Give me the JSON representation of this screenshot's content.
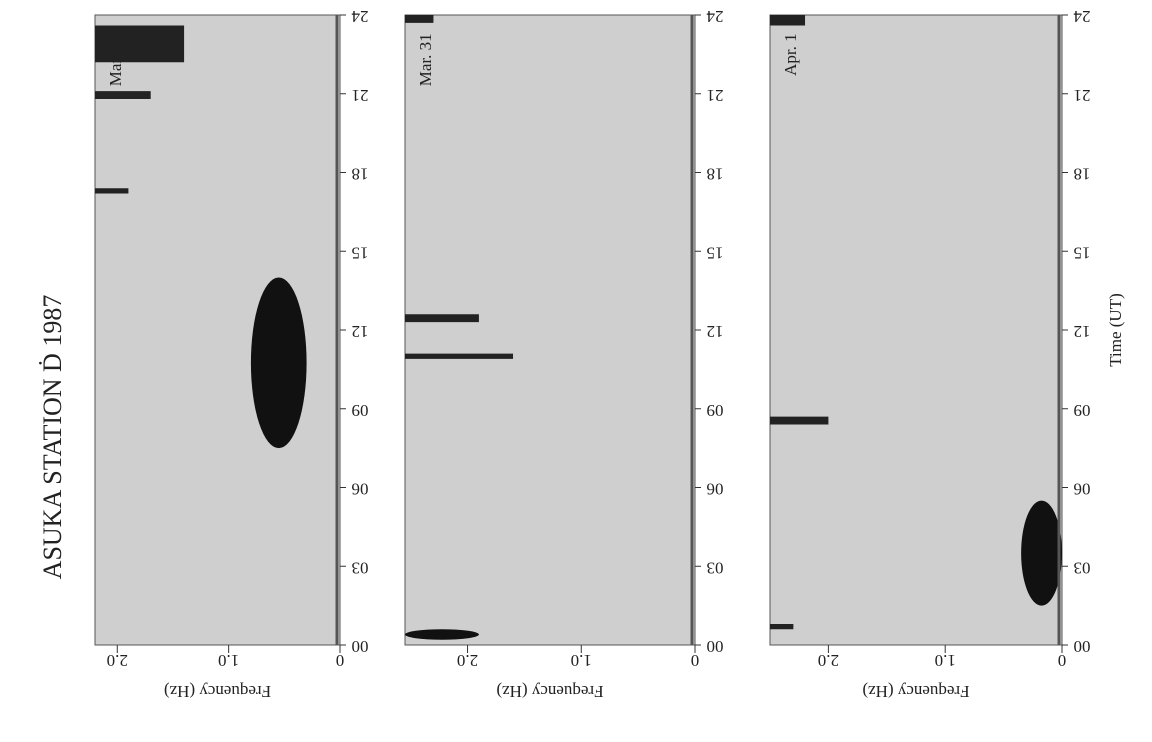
{
  "title": "ASUKA STATION  Ḋ  1987",
  "x_label": "Time (UT)",
  "xlim": [
    0,
    24
  ],
  "xticks": [
    {
      "value": 0,
      "label": "00"
    },
    {
      "value": 3,
      "label": "03"
    },
    {
      "value": 6,
      "label": "06"
    },
    {
      "value": 9,
      "label": "09"
    },
    12,
    15,
    18,
    21,
    24
  ],
  "panels": [
    {
      "date": "Mar. 30",
      "y_label": "Frequency (Hz)",
      "ylim": [
        0,
        2.2
      ],
      "yticks": [
        0,
        {
          "value": 1,
          "label": "1.0"
        },
        {
          "value": 2,
          "label": "2.0"
        }
      ]
    },
    {
      "date": "Mar. 31",
      "y_label": "Frequency (Hz)",
      "ylim": [
        0,
        2.55
      ],
      "yticks": [
        0,
        {
          "value": 1,
          "label": "1.0"
        },
        {
          "value": 2,
          "label": "2.0"
        }
      ]
    },
    {
      "date": "Apr. 1",
      "y_label": "Frequency (Hz)",
      "ylim": [
        0,
        2.5
      ],
      "yticks": [
        0,
        {
          "value": 1,
          "label": "1.0"
        },
        {
          "value": 2,
          "label": "2.0"
        }
      ]
    }
  ]
}
